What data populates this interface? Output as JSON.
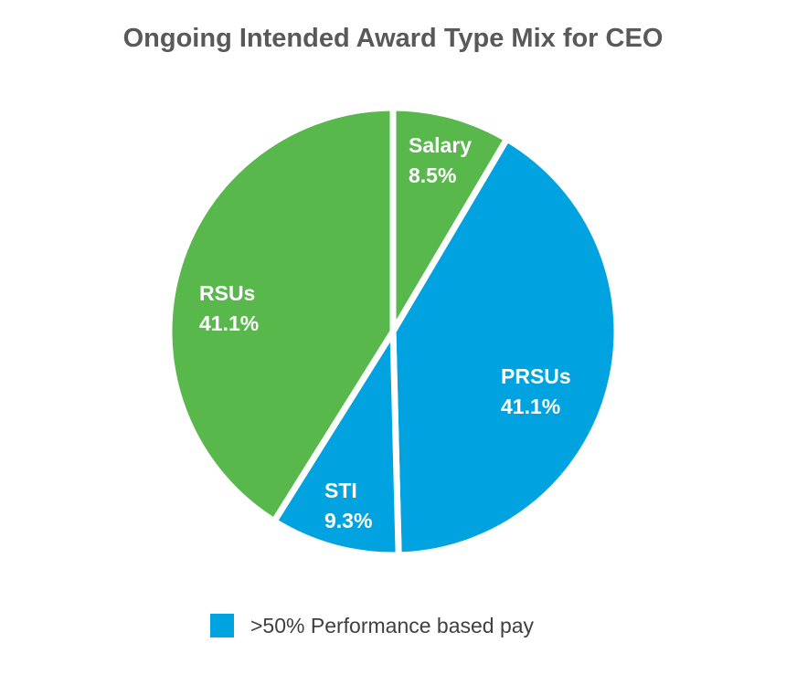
{
  "chart_data": {
    "type": "pie",
    "title": "Ongoing Intended Award Type Mix for CEO",
    "slices": [
      {
        "name": "Salary",
        "value": 8.5,
        "label": "8.5%",
        "color": "#58B84C",
        "performance_based": false
      },
      {
        "name": "PRSUs",
        "value": 41.1,
        "label": "41.1%",
        "color": "#00A3E0",
        "performance_based": true
      },
      {
        "name": "STI",
        "value": 9.3,
        "label": "9.3%",
        "color": "#00A3E0",
        "performance_based": true
      },
      {
        "name": "RSUs",
        "value": 41.1,
        "label": "41.1%",
        "color": "#58B84C",
        "performance_based": false
      }
    ],
    "start_angle_deg": 0,
    "direction": "clockwise",
    "legend": {
      "position": "bottom-center",
      "entries": [
        {
          "label": ">50% Performance based pay",
          "color": "#00A3E0"
        }
      ]
    }
  }
}
